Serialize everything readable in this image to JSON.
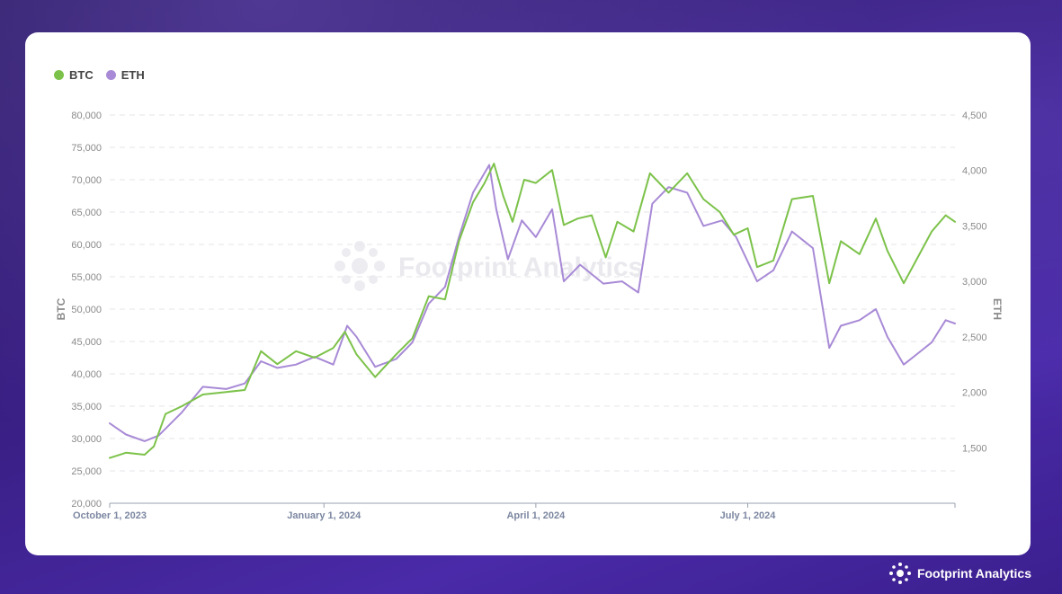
{
  "colors": {
    "btc": "#7cc24a",
    "eth": "#a88ad6"
  },
  "brand": {
    "name": "Footprint Analytics",
    "icon": "footprint-logo-icon"
  },
  "chart_data": {
    "type": "line",
    "title": "",
    "xlabel": "",
    "y_left_label": "BTC",
    "y_right_label": "ETH",
    "y_left_range": [
      20000,
      80000
    ],
    "y_right_range": [
      1000,
      4500
    ],
    "y_left_ticks": [
      "20,000",
      "25,000",
      "30,000",
      "35,000",
      "40,000",
      "45,000",
      "50,000",
      "55,000",
      "60,000",
      "65,000",
      "70,000",
      "75,000",
      "80,000"
    ],
    "y_right_ticks": [
      "1,500",
      "2,000",
      "2,500",
      "3,000",
      "3,500",
      "4,000",
      "4,500"
    ],
    "x_ticks": [
      {
        "label": "October 1, 2023",
        "date": "2023-10-01"
      },
      {
        "label": "January 1, 2024",
        "date": "2024-01-01"
      },
      {
        "label": "April 1, 2024",
        "date": "2024-04-01"
      },
      {
        "label": "July 1, 2024",
        "date": "2024-07-01"
      }
    ],
    "x_range": [
      "2023-10-01",
      "2024-09-28"
    ],
    "grid": "horizontal dashed",
    "legend_position": "top-left",
    "series": [
      {
        "name": "BTC",
        "axis": "left",
        "points": [
          [
            "2023-10-01",
            27000
          ],
          [
            "2023-10-08",
            27800
          ],
          [
            "2023-10-16",
            27500
          ],
          [
            "2023-10-20",
            28800
          ],
          [
            "2023-10-25",
            33800
          ],
          [
            "2023-11-01",
            35000
          ],
          [
            "2023-11-10",
            36800
          ],
          [
            "2023-11-20",
            37200
          ],
          [
            "2023-11-28",
            37500
          ],
          [
            "2023-12-05",
            43500
          ],
          [
            "2023-12-12",
            41500
          ],
          [
            "2023-12-20",
            43500
          ],
          [
            "2023-12-28",
            42500
          ],
          [
            "2024-01-05",
            44000
          ],
          [
            "2024-01-10",
            46500
          ],
          [
            "2024-01-15",
            43000
          ],
          [
            "2024-01-23",
            39500
          ],
          [
            "2024-02-01",
            43000
          ],
          [
            "2024-02-08",
            45500
          ],
          [
            "2024-02-15",
            52000
          ],
          [
            "2024-02-22",
            51500
          ],
          [
            "2024-02-28",
            60500
          ],
          [
            "2024-03-05",
            66500
          ],
          [
            "2024-03-10",
            69500
          ],
          [
            "2024-03-14",
            72500
          ],
          [
            "2024-03-18",
            67500
          ],
          [
            "2024-03-22",
            63500
          ],
          [
            "2024-03-27",
            70000
          ],
          [
            "2024-04-01",
            69500
          ],
          [
            "2024-04-08",
            71500
          ],
          [
            "2024-04-13",
            63000
          ],
          [
            "2024-04-19",
            64000
          ],
          [
            "2024-04-25",
            64500
          ],
          [
            "2024-05-01",
            58000
          ],
          [
            "2024-05-06",
            63500
          ],
          [
            "2024-05-13",
            62000
          ],
          [
            "2024-05-20",
            71000
          ],
          [
            "2024-05-28",
            68000
          ],
          [
            "2024-06-05",
            71000
          ],
          [
            "2024-06-12",
            67000
          ],
          [
            "2024-06-19",
            65000
          ],
          [
            "2024-06-25",
            61500
          ],
          [
            "2024-07-01",
            62500
          ],
          [
            "2024-07-05",
            56500
          ],
          [
            "2024-07-12",
            57500
          ],
          [
            "2024-07-20",
            67000
          ],
          [
            "2024-07-29",
            67500
          ],
          [
            "2024-08-05",
            54000
          ],
          [
            "2024-08-10",
            60500
          ],
          [
            "2024-08-18",
            58500
          ],
          [
            "2024-08-25",
            64000
          ],
          [
            "2024-08-30",
            59000
          ],
          [
            "2024-09-06",
            54000
          ],
          [
            "2024-09-12",
            58000
          ],
          [
            "2024-09-18",
            62000
          ],
          [
            "2024-09-24",
            64500
          ],
          [
            "2024-09-28",
            63500
          ]
        ]
      },
      {
        "name": "ETH",
        "axis": "right",
        "points": [
          [
            "2023-10-01",
            1720
          ],
          [
            "2023-10-08",
            1620
          ],
          [
            "2023-10-16",
            1560
          ],
          [
            "2023-10-22",
            1610
          ],
          [
            "2023-11-01",
            1820
          ],
          [
            "2023-11-10",
            2050
          ],
          [
            "2023-11-20",
            2030
          ],
          [
            "2023-11-28",
            2080
          ],
          [
            "2023-12-05",
            2280
          ],
          [
            "2023-12-12",
            2220
          ],
          [
            "2023-12-20",
            2250
          ],
          [
            "2023-12-28",
            2320
          ],
          [
            "2024-01-05",
            2250
          ],
          [
            "2024-01-11",
            2600
          ],
          [
            "2024-01-15",
            2500
          ],
          [
            "2024-01-23",
            2230
          ],
          [
            "2024-02-01",
            2300
          ],
          [
            "2024-02-08",
            2450
          ],
          [
            "2024-02-15",
            2800
          ],
          [
            "2024-02-22",
            2950
          ],
          [
            "2024-02-28",
            3400
          ],
          [
            "2024-03-05",
            3800
          ],
          [
            "2024-03-12",
            4050
          ],
          [
            "2024-03-15",
            3650
          ],
          [
            "2024-03-20",
            3200
          ],
          [
            "2024-03-26",
            3550
          ],
          [
            "2024-04-01",
            3400
          ],
          [
            "2024-04-08",
            3650
          ],
          [
            "2024-04-13",
            3000
          ],
          [
            "2024-04-20",
            3150
          ],
          [
            "2024-04-30",
            2980
          ],
          [
            "2024-05-08",
            3000
          ],
          [
            "2024-05-15",
            2900
          ],
          [
            "2024-05-21",
            3700
          ],
          [
            "2024-05-28",
            3850
          ],
          [
            "2024-06-05",
            3800
          ],
          [
            "2024-06-12",
            3500
          ],
          [
            "2024-06-20",
            3550
          ],
          [
            "2024-06-26",
            3400
          ],
          [
            "2024-07-05",
            3000
          ],
          [
            "2024-07-12",
            3100
          ],
          [
            "2024-07-20",
            3450
          ],
          [
            "2024-07-29",
            3300
          ],
          [
            "2024-08-05",
            2400
          ],
          [
            "2024-08-10",
            2600
          ],
          [
            "2024-08-18",
            2650
          ],
          [
            "2024-08-25",
            2750
          ],
          [
            "2024-08-30",
            2500
          ],
          [
            "2024-09-06",
            2250
          ],
          [
            "2024-09-12",
            2350
          ],
          [
            "2024-09-18",
            2450
          ],
          [
            "2024-09-24",
            2650
          ],
          [
            "2024-09-28",
            2620
          ]
        ]
      }
    ]
  }
}
